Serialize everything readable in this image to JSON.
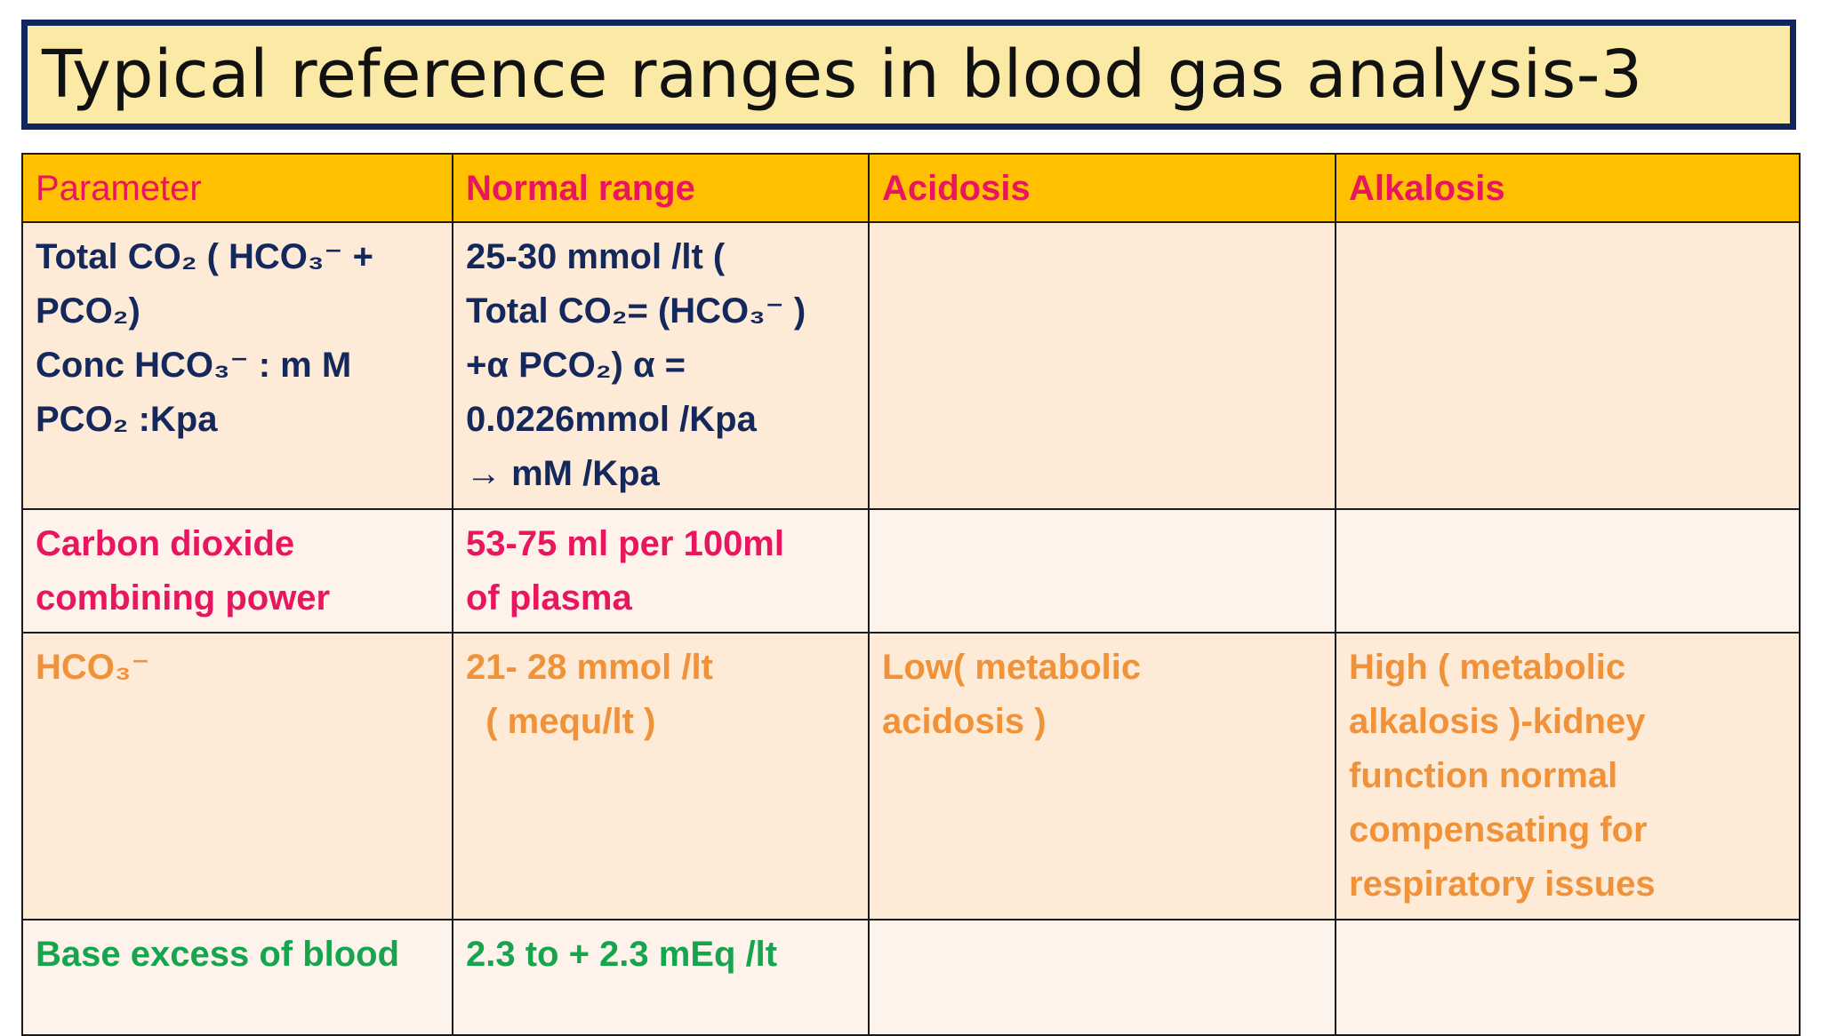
{
  "title": "Typical reference ranges in blood gas analysis-3",
  "table": {
    "headers": [
      "Parameter",
      "Normal range",
      "Acidosis",
      "Alkalosis"
    ],
    "rows": [
      {
        "parameter": [
          "Total CO₂ ( HCO₃⁻ +",
          "PCO₂)",
          "Conc HCO₃⁻ : m M",
          "PCO₂ :Kpa"
        ],
        "normal": [
          "25-30 mmol /lt (",
          "Total CO₂= (HCO₃⁻ )",
          "+α PCO₂) α =",
          "0.0226mmol  /Kpa",
          "→ mM /Kpa"
        ],
        "acidosis": [],
        "alkalosis": []
      },
      {
        "parameter": [
          "Carbon dioxide",
          "combining power"
        ],
        "normal": [
          "53-75 ml per 100ml",
          "of plasma"
        ],
        "acidosis": [],
        "alkalosis": []
      },
      {
        "parameter": [
          "HCO₃⁻"
        ],
        "normal": [
          "21- 28 mmol /lt",
          "  ( mequ/lt )"
        ],
        "acidosis": [
          "Low( metabolic",
          "acidosis )"
        ],
        "alkalosis": [
          "High ( metabolic",
          "alkalosis )-kidney",
          "function normal",
          "compensating for",
          "respiratory issues"
        ]
      },
      {
        "parameter": [
          "Base excess of blood"
        ],
        "normal": [
          "2.3 to + 2.3 mEq /lt"
        ],
        "acidosis": [],
        "alkalosis": []
      }
    ]
  },
  "colors": {
    "title_border": "#10265c",
    "title_bg": "#fbe9a6",
    "header_bg": "#ffc000",
    "header_text": "#e8155f",
    "row1_text": "#15285c",
    "row2_text": "#e8155f",
    "row3_text": "#f0923a",
    "row4_text": "#17a44e"
  }
}
